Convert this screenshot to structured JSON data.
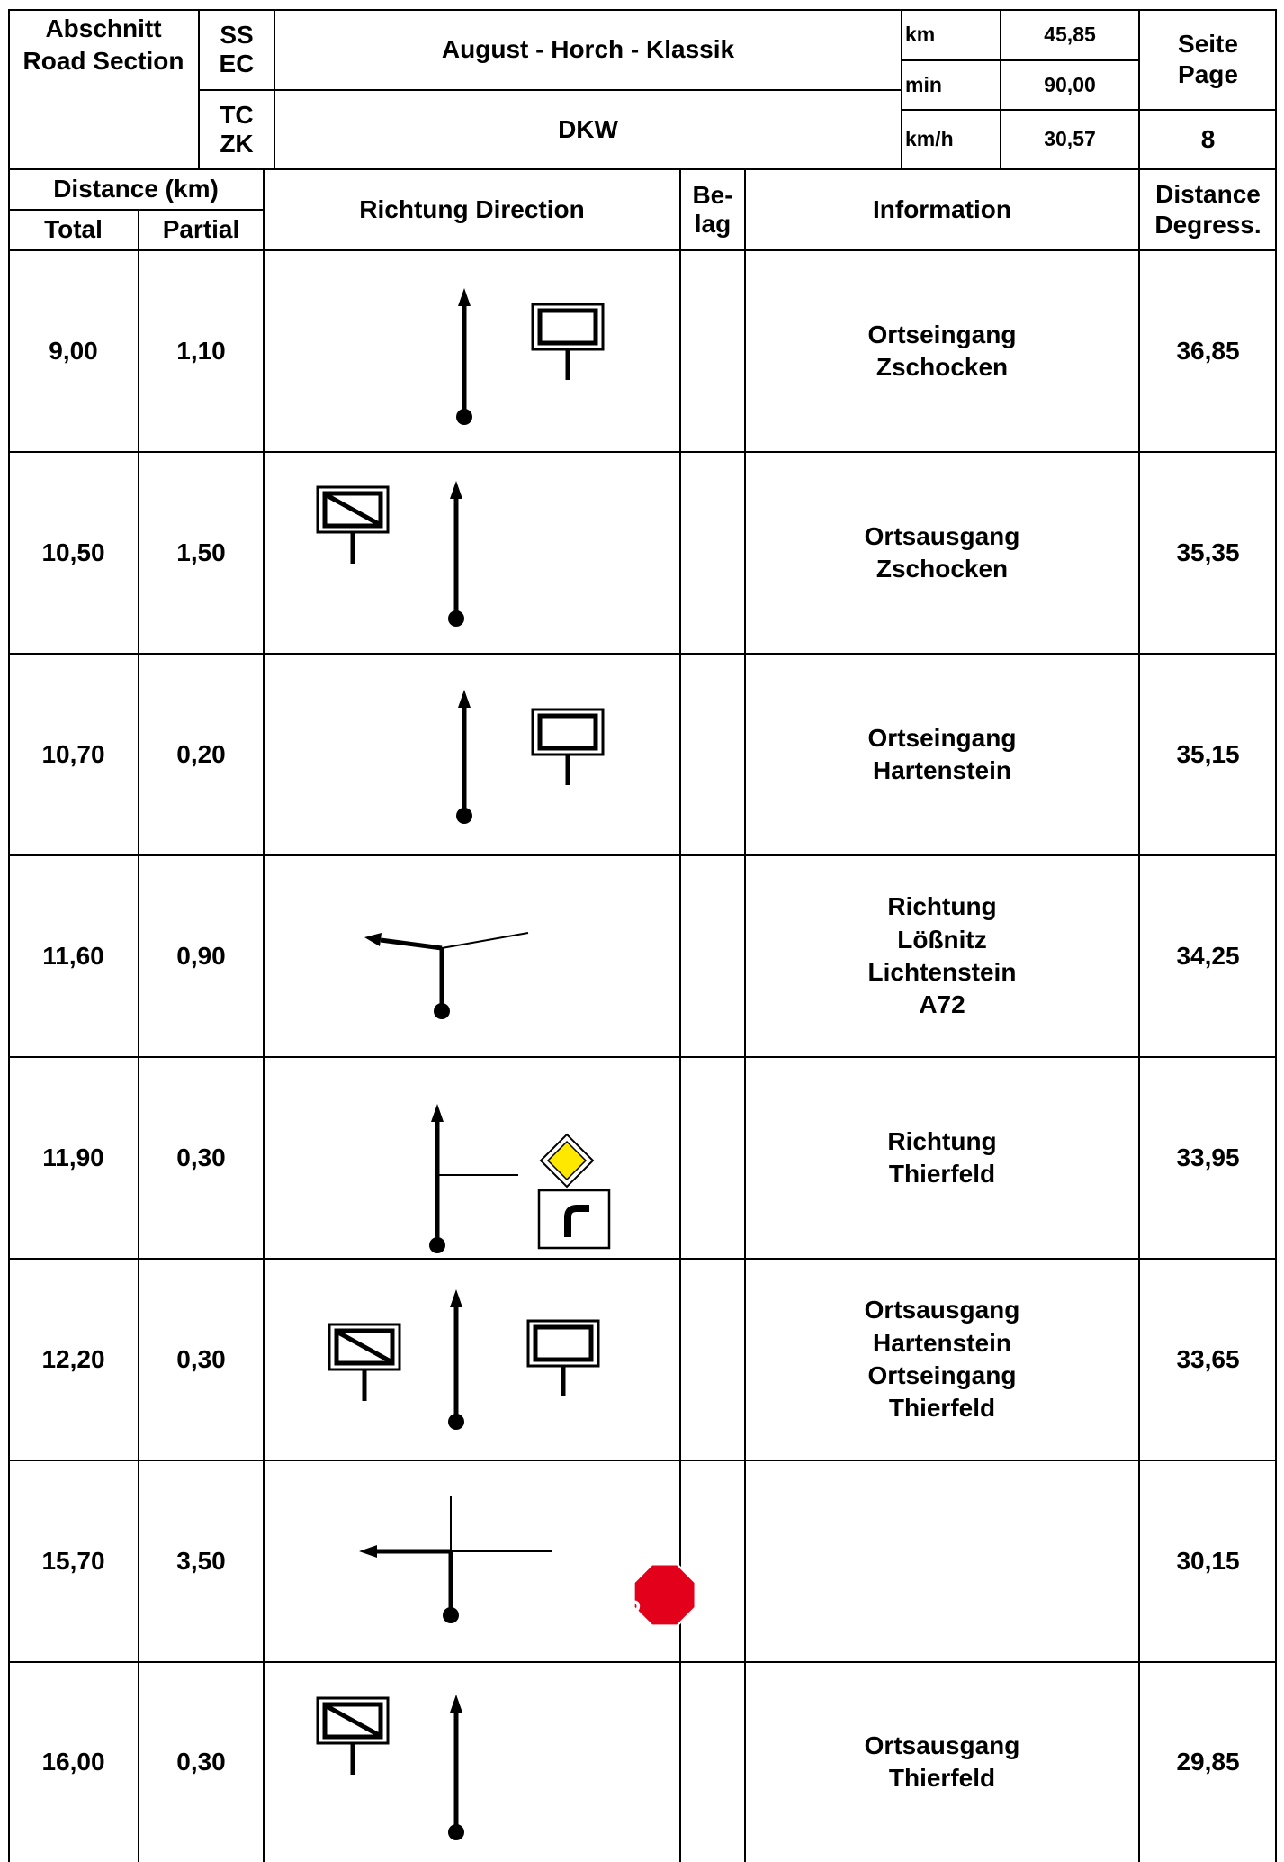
{
  "header": {
    "section_line1": "Abschnitt",
    "section_line2": "Road Section",
    "ss": "SS",
    "ec": "EC",
    "tc": "TC",
    "zk": "ZK",
    "event_title": "August - Horch - Klassik",
    "car": "DKW",
    "km_label": "km",
    "km_value": "45,85",
    "min_label": "min",
    "min_value": "90,00",
    "kmh_label": "km/h",
    "kmh_value": "30,57",
    "page_label1": "Seite",
    "page_label2": "Page",
    "page_number": "8"
  },
  "columns": {
    "distance": "Distance (km)",
    "total": "Total",
    "partial": "Partial",
    "direction": "Richtung  Direction",
    "belag1": "Be-",
    "belag2": "lag",
    "information": "Information",
    "degress1": "Distance",
    "degress2": "Degress."
  },
  "rows": [
    {
      "total": "9,00",
      "partial": "1,10",
      "info": [
        "Ortseingang",
        "Zschocken"
      ],
      "degress": "36,85",
      "icons": [
        "straight-arrow-icon",
        "town-entrance-sign-icon"
      ]
    },
    {
      "total": "10,50",
      "partial": "1,50",
      "info": [
        "Ortsausgang",
        "Zschocken"
      ],
      "degress": "35,35",
      "icons": [
        "town-exit-sign-icon",
        "straight-arrow-icon"
      ]
    },
    {
      "total": "10,70",
      "partial": "0,20",
      "info": [
        "Ortseingang",
        "Hartenstein"
      ],
      "degress": "35,15",
      "icons": [
        "straight-arrow-icon",
        "town-entrance-sign-icon"
      ]
    },
    {
      "total": "11,60",
      "partial": "0,90",
      "info": [
        "Richtung",
        "Lößnitz",
        "Lichtenstein",
        "A72"
      ],
      "degress": "34,25",
      "icons": [
        "left-fork-arrow-icon"
      ]
    },
    {
      "total": "11,90",
      "partial": "0,30",
      "info": [
        "Richtung",
        "Thierfeld"
      ],
      "degress": "33,95",
      "icons": [
        "straight-with-right-branch-arrow-icon",
        "priority-road-sign-icon",
        "priority-road-bend-plate-icon"
      ]
    },
    {
      "total": "12,20",
      "partial": "0,30",
      "info": [
        "Ortsausgang",
        "Hartenstein",
        "Ortseingang",
        "Thierfeld"
      ],
      "degress": "33,65",
      "icons": [
        "town-exit-sign-icon",
        "straight-arrow-icon",
        "town-entrance-sign-icon"
      ]
    },
    {
      "total": "15,70",
      "partial": "3,50",
      "info": [],
      "degress": "30,15",
      "icons": [
        "left-turn-crossroad-arrow-icon",
        "stop-sign-icon"
      ]
    },
    {
      "total": "16,00",
      "partial": "0,30",
      "info": [
        "Ortsausgang",
        "Thierfeld"
      ],
      "degress": "29,85",
      "icons": [
        "town-exit-sign-icon",
        "straight-arrow-icon"
      ]
    }
  ],
  "stop_sign_text": "STOP",
  "colors": {
    "priority_sign": "#ffe800",
    "stop_sign": "#e3001b"
  }
}
